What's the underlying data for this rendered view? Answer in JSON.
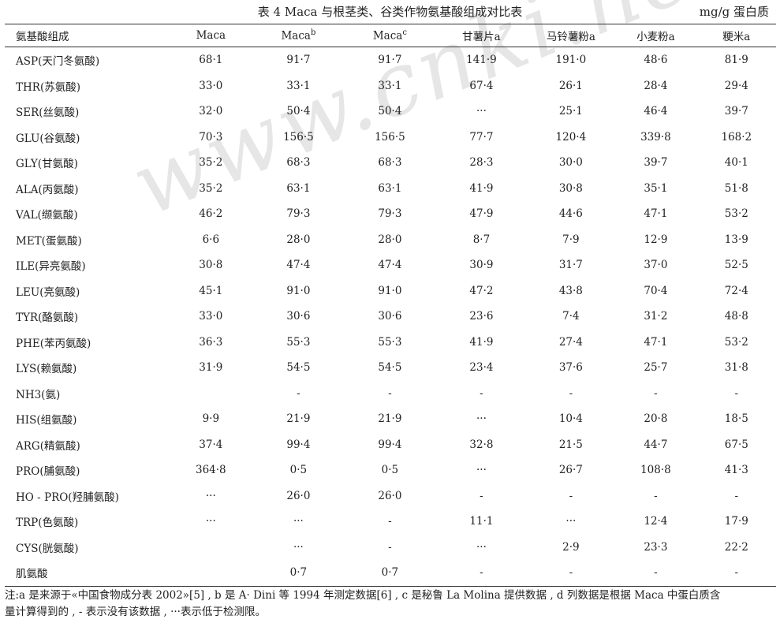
{
  "caption": {
    "title": "表 4   Maca 与根茎类、谷类作物氨基酸组成对比表",
    "unit": "mg/g 蛋白质"
  },
  "watermark": "www.cnki.net",
  "table": {
    "headers": [
      "氨基酸组成",
      "Maca",
      "Maca^b",
      "Maca^c",
      "甘薯片a",
      "马铃薯粉a",
      "小麦粉a",
      "粳米a"
    ],
    "rows": [
      [
        "ASP(天门冬氨酸)",
        "68·1",
        "91·7",
        "91·7",
        "141·9",
        "191·0",
        "48·6",
        "81·9"
      ],
      [
        "THR(苏氨酸)",
        "33·0",
        "33·1",
        "33·1",
        "67·4",
        "26·1",
        "28·4",
        "29·4"
      ],
      [
        "SER(丝氨酸)",
        "32·0",
        "50·4",
        "50·4",
        "···",
        "25·1",
        "46·4",
        "39·7"
      ],
      [
        "GLU(谷氨酸)",
        "70·3",
        "156·5",
        "156·5",
        "77·7",
        "120·4",
        "339·8",
        "168·2"
      ],
      [
        "GLY(甘氨酸)",
        "35·2",
        "68·3",
        "68·3",
        "28·3",
        "30·0",
        "39·7",
        "40·1"
      ],
      [
        "ALA(丙氨酸)",
        "35·2",
        "63·1",
        "63·1",
        "41·9",
        "30·8",
        "35·1",
        "51·8"
      ],
      [
        "VAL(缬氨酸)",
        "46·2",
        "79·3",
        "79·3",
        "47·9",
        "44·6",
        "47·1",
        "53·2"
      ],
      [
        "MET(蛋氨酸)",
        "6·6",
        "28·0",
        "28·0",
        "8·7",
        "7·9",
        "12·9",
        "13·9"
      ],
      [
        "ILE(异亮氨酸)",
        "30·8",
        "47·4",
        "47·4",
        "30·9",
        "31·7",
        "37·0",
        "52·5"
      ],
      [
        "LEU(亮氨酸)",
        "45·1",
        "91·0",
        "91·0",
        "47·2",
        "43·8",
        "70·4",
        "72·4"
      ],
      [
        "TYR(酪氨酸)",
        "33·0",
        "30·6",
        "30·6",
        "23·6",
        "7·4",
        "31·2",
        "48·8"
      ],
      [
        "PHE(苯丙氨酸)",
        "36·3",
        "55·3",
        "55·3",
        "41·9",
        "27·4",
        "47·1",
        "53·2"
      ],
      [
        "LYS(赖氨酸)",
        "31·9",
        "54·5",
        "54·5",
        "23·4",
        "37·6",
        "25·7",
        "31·8"
      ],
      [
        "NH3(氨)",
        "",
        "-",
        "-",
        "-",
        "-",
        "-",
        "-"
      ],
      [
        "HIS(组氨酸)",
        "9·9",
        "21·9",
        "21·9",
        "···",
        "10·4",
        "20·8",
        "18·5"
      ],
      [
        "ARG(精氨酸)",
        "37·4",
        "99·4",
        "99·4",
        "32·8",
        "21·5",
        "44·7",
        "67·5"
      ],
      [
        "PRO(脯氨酸)",
        "364·8",
        "0·5",
        "0·5",
        "···",
        "26·7",
        "108·8",
        "41·3"
      ],
      [
        "HO - PRO(羟脯氨酸)",
        "···",
        "26·0",
        "26·0",
        "-",
        "-",
        "-",
        "-"
      ],
      [
        "TRP(色氨酸)",
        "···",
        "···",
        "-",
        "11·1",
        "···",
        "12·4",
        "17·9"
      ],
      [
        "CYS(胱氨酸)",
        "",
        "···",
        "-",
        "···",
        "2·9",
        "23·3",
        "22·2"
      ],
      [
        "肌氨酸",
        "",
        "0·7",
        "0·7",
        "-",
        "-",
        "-",
        "-"
      ]
    ]
  },
  "note": {
    "line1": "注:a 是来源于«中国食物成分表 2002»[5] , b 是 A· Dini 等 1994 年测定数据[6] , c 是秘鲁 La Molina 提供数据 , d 列数据是根据 Maca 中蛋白质含",
    "line2": "量计算得到的 , - 表示没有该数据 , ···表示低于检测限。"
  }
}
